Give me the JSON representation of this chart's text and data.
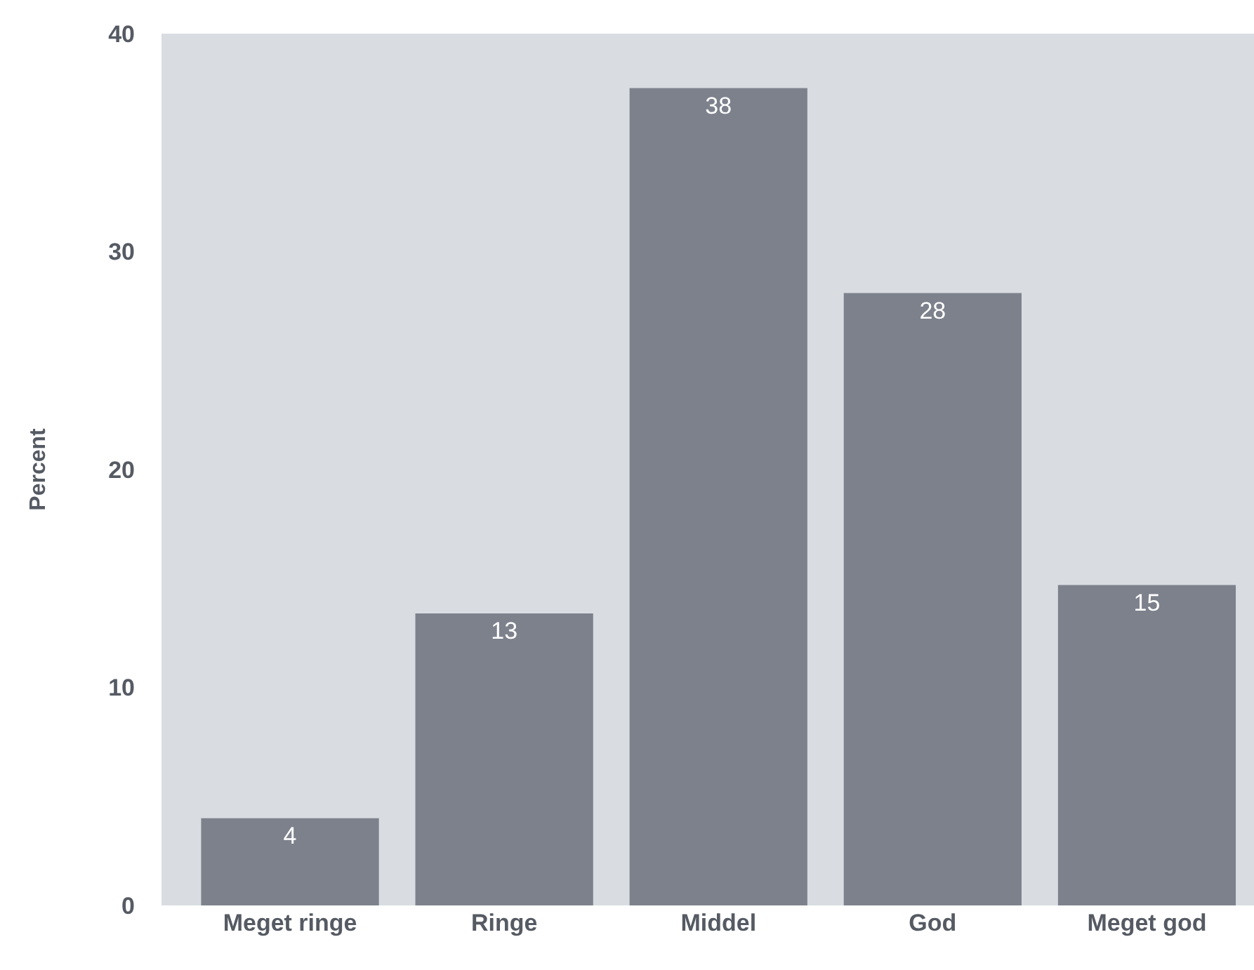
{
  "chart_data": {
    "type": "bar",
    "ylabel": "Percent",
    "categories": [
      "Meget ringe",
      "Ringe",
      "Middel",
      "God",
      "Meget god"
    ],
    "values": [
      4,
      13.4,
      37.5,
      28.1,
      14.7
    ],
    "value_labels": [
      "4",
      "13",
      "38",
      "28",
      "15"
    ],
    "color": "#7d818c",
    "ylim": [
      0,
      40
    ],
    "yticks": [
      0,
      10,
      20,
      30,
      40
    ],
    "grid": false
  }
}
